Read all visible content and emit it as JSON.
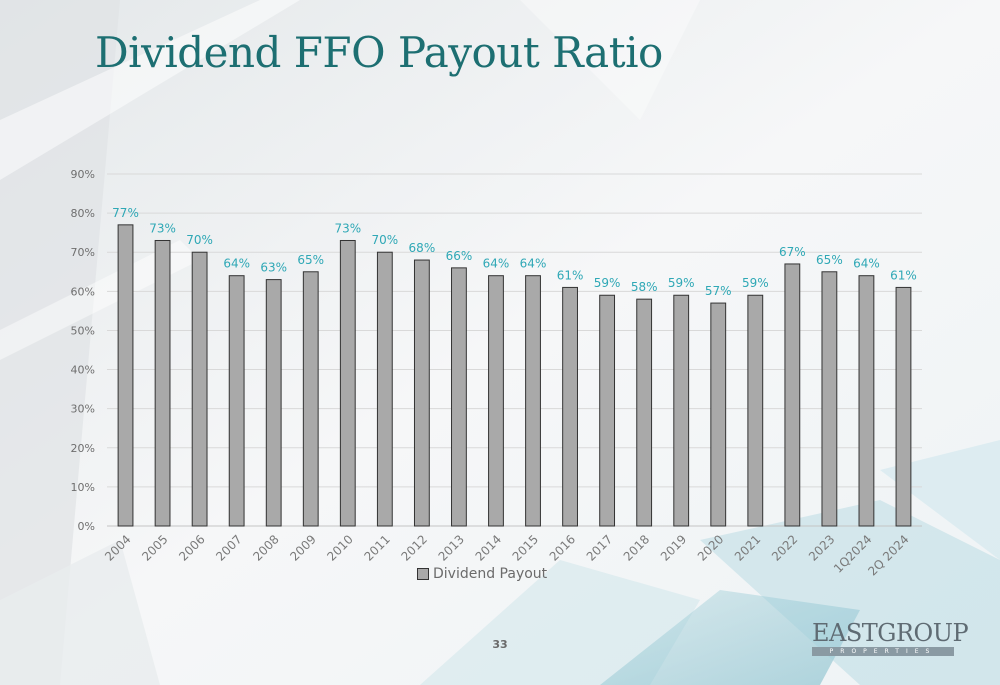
{
  "slide": {
    "title": "Dividend FFO Payout Ratio",
    "page_number": "33",
    "logo": {
      "wordmark": "EASTGROUP",
      "tagline": "PROPERTIES"
    }
  },
  "colors": {
    "title": "#1d6f72",
    "bar_fill": "#a9a9a9",
    "bar_stroke": "#333333",
    "data_label": "#2fa8b6",
    "gridline": "#d9d9d9"
  },
  "chart_data": {
    "type": "bar",
    "title": "",
    "xlabel": "",
    "ylabel": "",
    "categories": [
      "2004",
      "2005",
      "2006",
      "2007",
      "2008",
      "2009",
      "2010",
      "2011",
      "2012",
      "2013",
      "2014",
      "2015",
      "2016",
      "2017",
      "2018",
      "2019",
      "2020",
      "2021",
      "2022",
      "2023",
      "1Q2024",
      "2Q 2024"
    ],
    "series": [
      {
        "name": "Dividend Payout",
        "values": [
          77,
          73,
          70,
          64,
          63,
          65,
          73,
          70,
          68,
          66,
          64,
          64,
          61,
          59,
          58,
          59,
          57,
          59,
          67,
          65,
          64,
          61
        ]
      }
    ],
    "value_labels": [
      "77%",
      "73%",
      "70%",
      "64%",
      "63%",
      "65%",
      "73%",
      "70%",
      "68%",
      "66%",
      "64%",
      "64%",
      "61%",
      "59%",
      "58%",
      "59%",
      "57%",
      "59%",
      "67%",
      "65%",
      "64%",
      "61%"
    ],
    "ylim": [
      0,
      90
    ],
    "yticks": [
      "0%",
      "10%",
      "20%",
      "30%",
      "40%",
      "50%",
      "60%",
      "70%",
      "80%",
      "90%"
    ],
    "ytick_values": [
      0,
      10,
      20,
      30,
      40,
      50,
      60,
      70,
      80,
      90
    ],
    "grid": true,
    "legend_position": "bottom"
  }
}
